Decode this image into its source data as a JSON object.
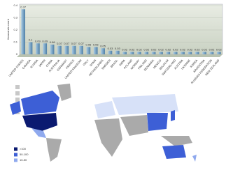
{
  "chart_data": {
    "type": "bar",
    "y_label": "thousands count",
    "categories": [
      "UNITED STATES",
      "CANADA",
      "RUSSIA",
      "JAPAN",
      "CHINA",
      "AUSTRALIA",
      "GERMANY",
      "FRANCE",
      "UNITED KINGDOM",
      "ITALY",
      "SPAIN",
      "NETHERLANDS",
      "SWEDEN",
      "BRAZIL",
      "INDIA",
      "POLAND",
      "NORWAY",
      "FINLAND",
      "DENMARK",
      "MEXICO",
      "BELGIUM",
      "SWITZERLAND",
      "AUSTRIA",
      "UKRAINE",
      "KOREA",
      "ARGENTINA",
      "RUSSIAN FEDERATION",
      "NEW ZEALAND"
    ],
    "values": [
      0.37,
      0.1,
      0.09,
      0.09,
      0.08,
      0.07,
      0.07,
      0.07,
      0.07,
      0.06,
      0.06,
      0.05,
      0.03,
      0.03,
      0.02,
      0.02,
      0.02,
      0.02,
      0.02,
      0.02,
      0.02,
      0.02,
      0.02,
      0.02,
      0.02,
      0.02,
      0.02,
      0.02
    ],
    "color": "#7aa6c8",
    "ylim": [
      0,
      0.4
    ],
    "yticks": [
      0,
      0.1,
      0.2,
      0.3,
      0.4
    ],
    "grid": true
  },
  "map": {
    "legend": [
      {
        "label": ">100",
        "color": "#0b1a70"
      },
      {
        "label": "50-100",
        "color": "#3d5fd6"
      },
      {
        "label": "10-50",
        "color": "#8fa9ee"
      }
    ]
  }
}
